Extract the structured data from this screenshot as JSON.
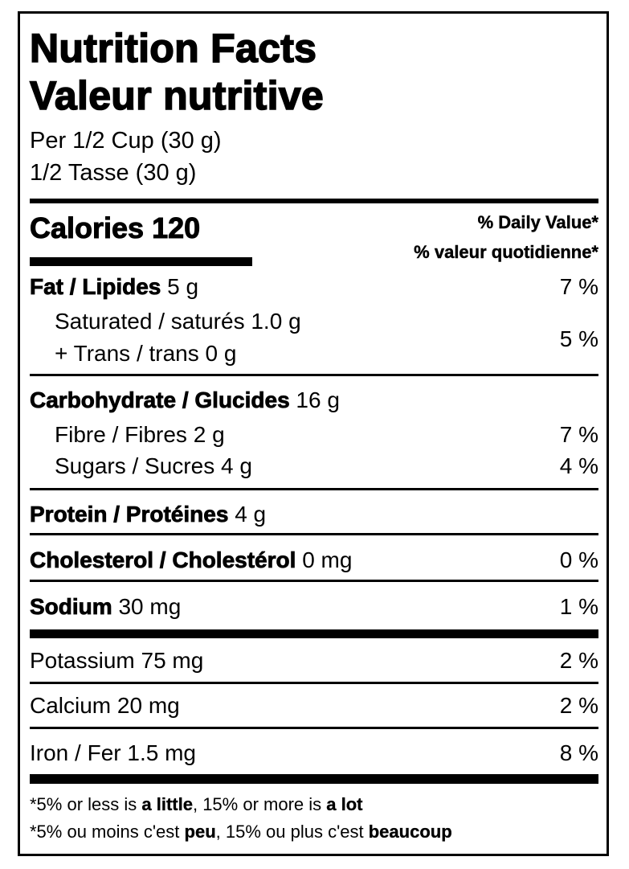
{
  "title_en": "Nutrition Facts",
  "title_fr": "Valeur nutritive",
  "serving_en": "Per 1/2 Cup (30 g)",
  "serving_fr": "1/2 Tasse (30 g)",
  "calories": {
    "label": "Calories",
    "value": "120"
  },
  "daily_value_en": "% Daily Value*",
  "daily_value_fr": "% valeur quotidienne*",
  "nutrients": [
    {
      "label": "Fat / Lipides",
      "amount": "5 g",
      "dv": "7 %"
    },
    {
      "label": "Saturated / saturés",
      "amount": "1.0 g"
    },
    {
      "label": "+ Trans / trans",
      "amount": "0 g",
      "dv": "5 %"
    },
    {
      "label": "Carbohydrate / Glucides",
      "amount": "16 g"
    },
    {
      "label": "Fibre / Fibres",
      "amount": "2 g",
      "dv": "7 %"
    },
    {
      "label": "Sugars / Sucres",
      "amount": "4 g",
      "dv": "4 %"
    },
    {
      "label": "Protein / Protéines",
      "amount": "4 g"
    },
    {
      "label": "Cholesterol / Cholestérol",
      "amount": "0 mg",
      "dv": "0 %"
    },
    {
      "label": "Sodium",
      "amount": "30 mg",
      "dv": "1 %"
    },
    {
      "label": "Potassium",
      "amount": "75 mg",
      "dv": "2 %"
    },
    {
      "label": "Calcium",
      "amount": "20 mg",
      "dv": "2 %"
    },
    {
      "label": "Iron / Fer",
      "amount": "1.5 mg",
      "dv": "8 %"
    }
  ],
  "footnote_en": {
    "p1": "*5% or less is ",
    "b1": "a little",
    "p2": ", 15% or more is ",
    "b2": "a lot"
  },
  "footnote_fr": {
    "p1": "*5% ou moins c'est ",
    "b1": "peu",
    "p2": ", 15% ou plus c'est ",
    "b2": "beaucoup"
  }
}
